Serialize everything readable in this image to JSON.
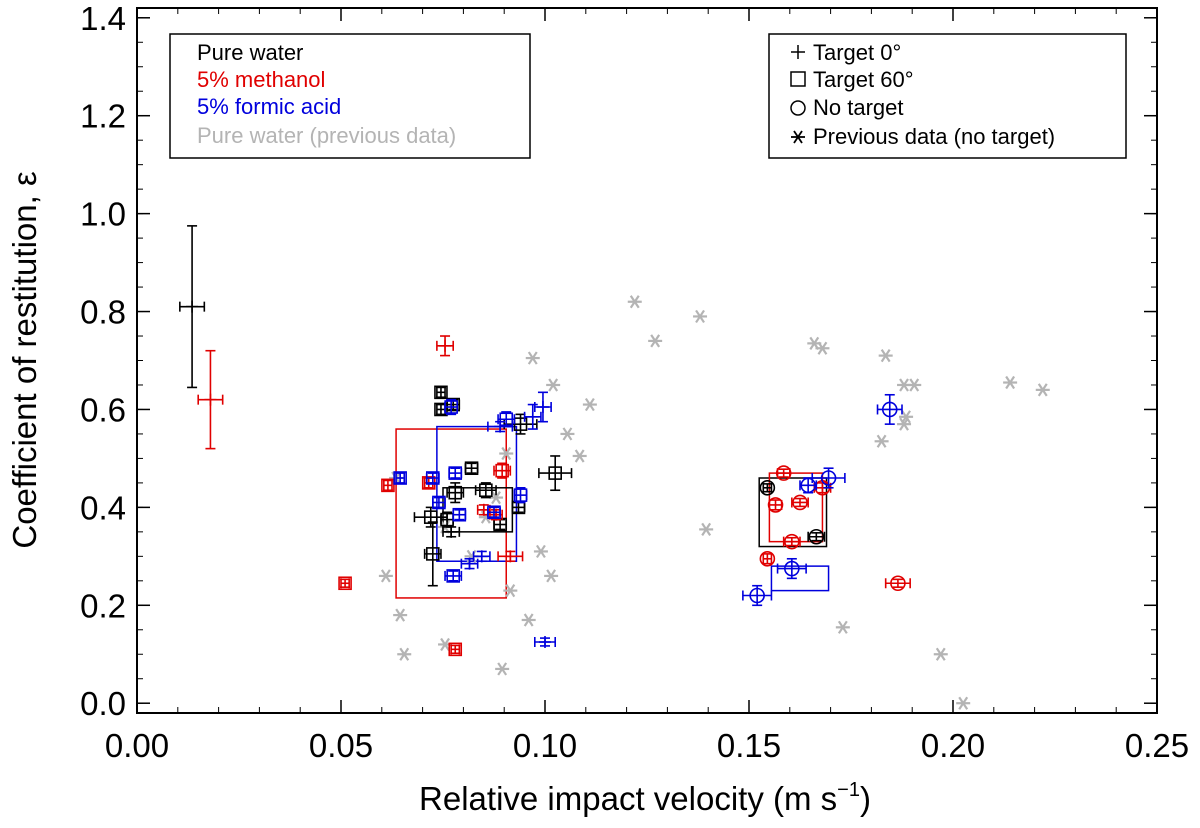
{
  "colors": {
    "pure_water": "#000000",
    "methanol": "#e00000",
    "formic_acid": "#0000dd",
    "previous": "#b4b4b4"
  },
  "chart_data": {
    "type": "scatter",
    "xlabel": "Relative impact velocity (m s",
    "xlabel_exponent": "−1",
    "xlabel_close": ")",
    "ylabel": "Coefficient of restitution, ε",
    "xlim": [
      0,
      0.25
    ],
    "ylim": [
      -0.02,
      1.42
    ],
    "xticks": [
      0,
      0.05,
      0.1,
      0.15,
      0.2,
      0.25
    ],
    "xtick_labels": [
      "0.00",
      "0.05",
      "0.10",
      "0.15",
      "0.20",
      "0.25"
    ],
    "xminor_step": 0.01,
    "yticks": [
      0,
      0.2,
      0.4,
      0.6,
      0.8,
      1.0,
      1.2,
      1.4
    ],
    "ytick_labels": [
      "0.0",
      "0.2",
      "0.4",
      "0.6",
      "0.8",
      "1.0",
      "1.2",
      "1.4"
    ],
    "yminor_step": 0.05,
    "legend_color": {
      "placement": "top-left",
      "entries": [
        {
          "label": "Pure water",
          "series": "pure_water"
        },
        {
          "label": "5% methanol",
          "series": "methanol"
        },
        {
          "label": "5% formic acid",
          "series": "formic_acid"
        },
        {
          "label": "Pure water (previous data)",
          "series": "previous"
        }
      ]
    },
    "legend_symbol": {
      "placement": "top-right",
      "entries": [
        {
          "label": "Target 0°",
          "symbol": "plus"
        },
        {
          "label": "Target 60°",
          "symbol": "square"
        },
        {
          "label": "No target",
          "symbol": "circle"
        },
        {
          "label": "Previous data (no target)",
          "symbol": "asterisk"
        }
      ]
    },
    "range_boxes": [
      {
        "series": "methanol",
        "x": [
          0.0635,
          0.0905
        ],
        "y": [
          0.215,
          0.56
        ]
      },
      {
        "series": "formic_acid",
        "x": [
          0.0735,
          0.093
        ],
        "y": [
          0.29,
          0.565
        ]
      },
      {
        "series": "pure_water",
        "x": [
          0.075,
          0.092
        ],
        "y": [
          0.35,
          0.44
        ]
      },
      {
        "series": "pure_water",
        "x": [
          0.1525,
          0.169
        ],
        "y": [
          0.32,
          0.46
        ]
      },
      {
        "series": "methanol",
        "x": [
          0.155,
          0.168
        ],
        "y": [
          0.33,
          0.47
        ]
      },
      {
        "series": "formic_acid",
        "x": [
          0.1555,
          0.1695
        ],
        "y": [
          0.23,
          0.28
        ]
      }
    ],
    "series": [
      {
        "name": "Pure water (previous data)",
        "color_key": "previous",
        "points": [
          {
            "x": 0.061,
            "y": 0.26,
            "m": "asterisk"
          },
          {
            "x": 0.0635,
            "y": 0.46,
            "m": "asterisk"
          },
          {
            "x": 0.0645,
            "y": 0.18,
            "m": "asterisk"
          },
          {
            "x": 0.0655,
            "y": 0.1,
            "m": "asterisk"
          },
          {
            "x": 0.0755,
            "y": 0.12,
            "m": "asterisk"
          },
          {
            "x": 0.0755,
            "y": 0.36,
            "m": "asterisk"
          },
          {
            "x": 0.082,
            "y": 0.3,
            "m": "asterisk"
          },
          {
            "x": 0.0855,
            "y": 0.38,
            "m": "asterisk"
          },
          {
            "x": 0.088,
            "y": 0.42,
            "m": "asterisk"
          },
          {
            "x": 0.0895,
            "y": 0.07,
            "m": "asterisk"
          },
          {
            "x": 0.0905,
            "y": 0.51,
            "m": "asterisk"
          },
          {
            "x": 0.0915,
            "y": 0.23,
            "m": "asterisk"
          },
          {
            "x": 0.096,
            "y": 0.17,
            "m": "asterisk"
          },
          {
            "x": 0.097,
            "y": 0.705,
            "m": "asterisk"
          },
          {
            "x": 0.099,
            "y": 0.31,
            "m": "asterisk"
          },
          {
            "x": 0.1015,
            "y": 0.26,
            "m": "asterisk"
          },
          {
            "x": 0.102,
            "y": 0.65,
            "m": "asterisk"
          },
          {
            "x": 0.1055,
            "y": 0.55,
            "m": "asterisk"
          },
          {
            "x": 0.1085,
            "y": 0.505,
            "m": "asterisk"
          },
          {
            "x": 0.111,
            "y": 0.61,
            "m": "asterisk"
          },
          {
            "x": 0.122,
            "y": 0.82,
            "m": "asterisk"
          },
          {
            "x": 0.127,
            "y": 0.74,
            "m": "asterisk"
          },
          {
            "x": 0.138,
            "y": 0.79,
            "m": "asterisk"
          },
          {
            "x": 0.1395,
            "y": 0.355,
            "m": "asterisk"
          },
          {
            "x": 0.166,
            "y": 0.735,
            "m": "asterisk"
          },
          {
            "x": 0.168,
            "y": 0.725,
            "m": "asterisk"
          },
          {
            "x": 0.173,
            "y": 0.155,
            "m": "asterisk"
          },
          {
            "x": 0.1825,
            "y": 0.535,
            "m": "asterisk"
          },
          {
            "x": 0.1835,
            "y": 0.71,
            "m": "asterisk"
          },
          {
            "x": 0.188,
            "y": 0.57,
            "m": "asterisk"
          },
          {
            "x": 0.1885,
            "y": 0.585,
            "m": "asterisk"
          },
          {
            "x": 0.188,
            "y": 0.65,
            "m": "asterisk"
          },
          {
            "x": 0.1905,
            "y": 0.65,
            "m": "asterisk"
          },
          {
            "x": 0.197,
            "y": 0.1,
            "m": "asterisk"
          },
          {
            "x": 0.2025,
            "y": 0.0,
            "m": "asterisk"
          },
          {
            "x": 0.214,
            "y": 0.655,
            "m": "asterisk"
          },
          {
            "x": 0.222,
            "y": 0.64,
            "m": "asterisk"
          }
        ]
      },
      {
        "name": "Pure water",
        "color_key": "pure_water",
        "points": [
          {
            "x": 0.0135,
            "y": 0.81,
            "m": "plus",
            "xerr": 0.003,
            "yerr": 0.165
          },
          {
            "x": 0.072,
            "y": 0.38,
            "m": "square",
            "xerr": 0.004,
            "yerr": 0.02
          },
          {
            "x": 0.0725,
            "y": 0.305,
            "m": "square",
            "xerr": 0.002,
            "yerr": 0.065
          },
          {
            "x": 0.0745,
            "y": 0.635,
            "m": "square",
            "xerr": 0.001,
            "yerr": 0.01
          },
          {
            "x": 0.0745,
            "y": 0.6,
            "m": "square",
            "xerr": 0.001,
            "yerr": 0.01
          },
          {
            "x": 0.076,
            "y": 0.375,
            "m": "square",
            "xerr": 0.0015,
            "yerr": 0.015
          },
          {
            "x": 0.077,
            "y": 0.35,
            "m": "plus",
            "xerr": 0.002,
            "yerr": 0.01
          },
          {
            "x": 0.0775,
            "y": 0.61,
            "m": "square",
            "xerr": 0.0015,
            "yerr": 0.01
          },
          {
            "x": 0.078,
            "y": 0.43,
            "m": "square",
            "xerr": 0.002,
            "yerr": 0.02
          },
          {
            "x": 0.082,
            "y": 0.48,
            "m": "square",
            "xerr": 0.0015,
            "yerr": 0.01
          },
          {
            "x": 0.0855,
            "y": 0.435,
            "m": "square",
            "xerr": 0.0025,
            "yerr": 0.015
          },
          {
            "x": 0.089,
            "y": 0.365,
            "m": "square",
            "xerr": 0.0015,
            "yerr": 0.01
          },
          {
            "x": 0.0935,
            "y": 0.4,
            "m": "square",
            "xerr": 0.0015,
            "yerr": 0.01
          },
          {
            "x": 0.094,
            "y": 0.57,
            "m": "square",
            "xerr": 0.004,
            "yerr": 0.02
          },
          {
            "x": 0.1025,
            "y": 0.47,
            "m": "square",
            "xerr": 0.004,
            "yerr": 0.035
          },
          {
            "x": 0.1545,
            "y": 0.44,
            "m": "circle",
            "xerr": 0.001,
            "yerr": 0.008
          },
          {
            "x": 0.1665,
            "y": 0.34,
            "m": "circle",
            "xerr": 0.002,
            "yerr": 0.008
          }
        ]
      },
      {
        "name": "5% methanol",
        "color_key": "methanol",
        "points": [
          {
            "x": 0.018,
            "y": 0.62,
            "m": "plus",
            "xerr": 0.003,
            "yerr": 0.1
          },
          {
            "x": 0.051,
            "y": 0.245,
            "m": "square",
            "xerr": 0.001,
            "yerr": 0.008
          },
          {
            "x": 0.0615,
            "y": 0.445,
            "m": "square",
            "xerr": 0.001,
            "yerr": 0.01
          },
          {
            "x": 0.0715,
            "y": 0.45,
            "m": "square",
            "xerr": 0.001,
            "yerr": 0.01
          },
          {
            "x": 0.0755,
            "y": 0.73,
            "m": "plus",
            "xerr": 0.002,
            "yerr": 0.02
          },
          {
            "x": 0.078,
            "y": 0.11,
            "m": "square",
            "xerr": 0.001,
            "yerr": 0.008
          },
          {
            "x": 0.085,
            "y": 0.395,
            "m": "plus",
            "xerr": 0.0015,
            "yerr": 0.01
          },
          {
            "x": 0.088,
            "y": 0.385,
            "m": "plus",
            "xerr": 0.0015,
            "yerr": 0.01
          },
          {
            "x": 0.0895,
            "y": 0.475,
            "m": "square",
            "xerr": 0.002,
            "yerr": 0.015
          },
          {
            "x": 0.0915,
            "y": 0.3,
            "m": "plus",
            "xerr": 0.003,
            "yerr": 0.01
          },
          {
            "x": 0.1545,
            "y": 0.295,
            "m": "circle",
            "xerr": 0.001,
            "yerr": 0.01
          },
          {
            "x": 0.1565,
            "y": 0.405,
            "m": "circle",
            "xerr": 0.0015,
            "yerr": 0.01
          },
          {
            "x": 0.1585,
            "y": 0.47,
            "m": "circle",
            "xerr": 0.0015,
            "yerr": 0.008
          },
          {
            "x": 0.1605,
            "y": 0.33,
            "m": "circle",
            "xerr": 0.002,
            "yerr": 0.008
          },
          {
            "x": 0.1625,
            "y": 0.41,
            "m": "circle",
            "xerr": 0.002,
            "yerr": 0.008
          },
          {
            "x": 0.168,
            "y": 0.44,
            "m": "circle",
            "xerr": 0.002,
            "yerr": 0.01
          },
          {
            "x": 0.1865,
            "y": 0.245,
            "m": "circle",
            "xerr": 0.003,
            "yerr": 0.008
          }
        ]
      },
      {
        "name": "5% formic acid",
        "color_key": "formic_acid",
        "points": [
          {
            "x": 0.0645,
            "y": 0.46,
            "m": "square",
            "xerr": 0.001,
            "yerr": 0.01
          },
          {
            "x": 0.0725,
            "y": 0.46,
            "m": "square",
            "xerr": 0.0015,
            "yerr": 0.01
          },
          {
            "x": 0.074,
            "y": 0.41,
            "m": "square",
            "xerr": 0.0015,
            "yerr": 0.01
          },
          {
            "x": 0.077,
            "y": 0.605,
            "m": "square",
            "xerr": 0.0015,
            "yerr": 0.015
          },
          {
            "x": 0.0775,
            "y": 0.26,
            "m": "square",
            "xerr": 0.002,
            "yerr": 0.01
          },
          {
            "x": 0.078,
            "y": 0.47,
            "m": "square",
            "xerr": 0.0015,
            "yerr": 0.01
          },
          {
            "x": 0.079,
            "y": 0.385,
            "m": "square",
            "xerr": 0.0015,
            "yerr": 0.01
          },
          {
            "x": 0.0815,
            "y": 0.285,
            "m": "plus",
            "xerr": 0.002,
            "yerr": 0.01
          },
          {
            "x": 0.0845,
            "y": 0.3,
            "m": "plus",
            "xerr": 0.002,
            "yerr": 0.01
          },
          {
            "x": 0.0875,
            "y": 0.39,
            "m": "square",
            "xerr": 0.0015,
            "yerr": 0.01
          },
          {
            "x": 0.089,
            "y": 0.565,
            "m": "plus",
            "xerr": 0.003,
            "yerr": 0.01
          },
          {
            "x": 0.0905,
            "y": 0.58,
            "m": "square",
            "xerr": 0.002,
            "yerr": 0.015
          },
          {
            "x": 0.094,
            "y": 0.425,
            "m": "square",
            "xerr": 0.0015,
            "yerr": 0.015
          },
          {
            "x": 0.097,
            "y": 0.585,
            "m": "plus",
            "xerr": 0.002,
            "yerr": 0.025
          },
          {
            "x": 0.0995,
            "y": 0.605,
            "m": "plus",
            "xerr": 0.002,
            "yerr": 0.03
          },
          {
            "x": 0.1,
            "y": 0.125,
            "m": "plus",
            "xerr": 0.0025,
            "yerr": 0.008
          },
          {
            "x": 0.152,
            "y": 0.22,
            "m": "circle",
            "xerr": 0.0035,
            "yerr": 0.02
          },
          {
            "x": 0.1605,
            "y": 0.275,
            "m": "circle",
            "xerr": 0.0035,
            "yerr": 0.02
          },
          {
            "x": 0.1645,
            "y": 0.445,
            "m": "circle",
            "xerr": 0.002,
            "yerr": 0.015
          },
          {
            "x": 0.1695,
            "y": 0.46,
            "m": "circle",
            "xerr": 0.004,
            "yerr": 0.02
          },
          {
            "x": 0.1845,
            "y": 0.6,
            "m": "circle",
            "xerr": 0.003,
            "yerr": 0.03
          }
        ]
      }
    ]
  }
}
